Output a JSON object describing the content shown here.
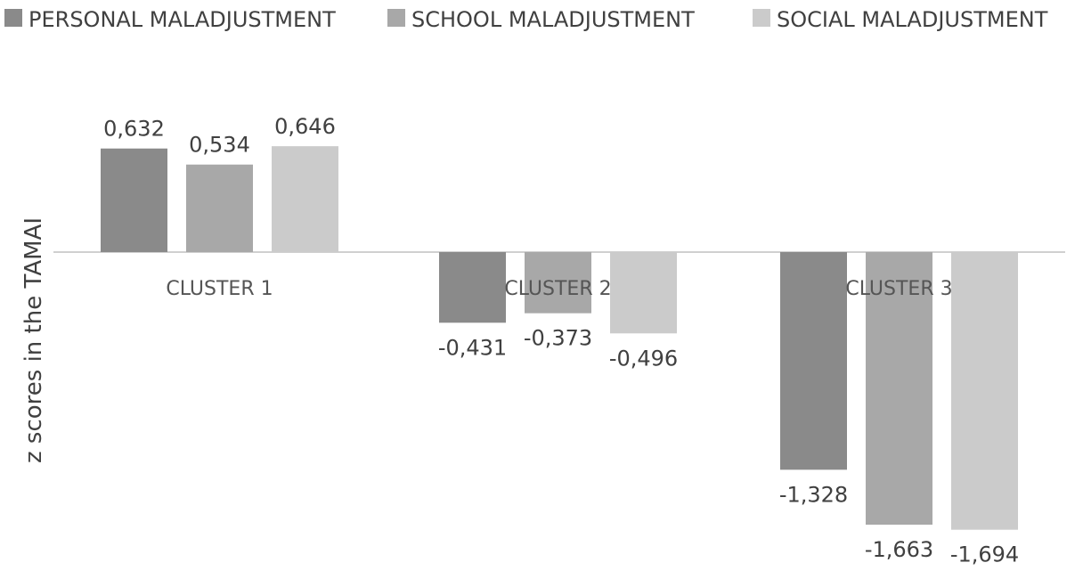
{
  "chart_data": {
    "type": "bar",
    "categories": [
      "CLUSTER 1",
      "CLUSTER 2",
      "CLUSTER 3"
    ],
    "series": [
      {
        "name": "PERSONAL MALADJUSTMENT",
        "color": "#8a8a8a",
        "values": [
          0.632,
          -0.431,
          -1.328
        ],
        "labels": [
          "0,632",
          "-0,431",
          "-1,328"
        ]
      },
      {
        "name": "SCHOOL MALADJUSTMENT",
        "color": "#a8a8a8",
        "values": [
          0.534,
          -0.373,
          -1.663
        ],
        "labels": [
          "0,534",
          "-0,373",
          "-1,663"
        ]
      },
      {
        "name": "SOCIAL MALADJUSTMENT",
        "color": "#cbcbcb",
        "values": [
          0.646,
          -0.496,
          -1.694
        ],
        "labels": [
          "0,646",
          "-0,496",
          "-1,694"
        ]
      }
    ],
    "ylabel": "z scores in the TAMAI",
    "xlabel": "",
    "ylim": [
      -1.85,
      0.8
    ],
    "grid": false,
    "legend_position": "top"
  }
}
